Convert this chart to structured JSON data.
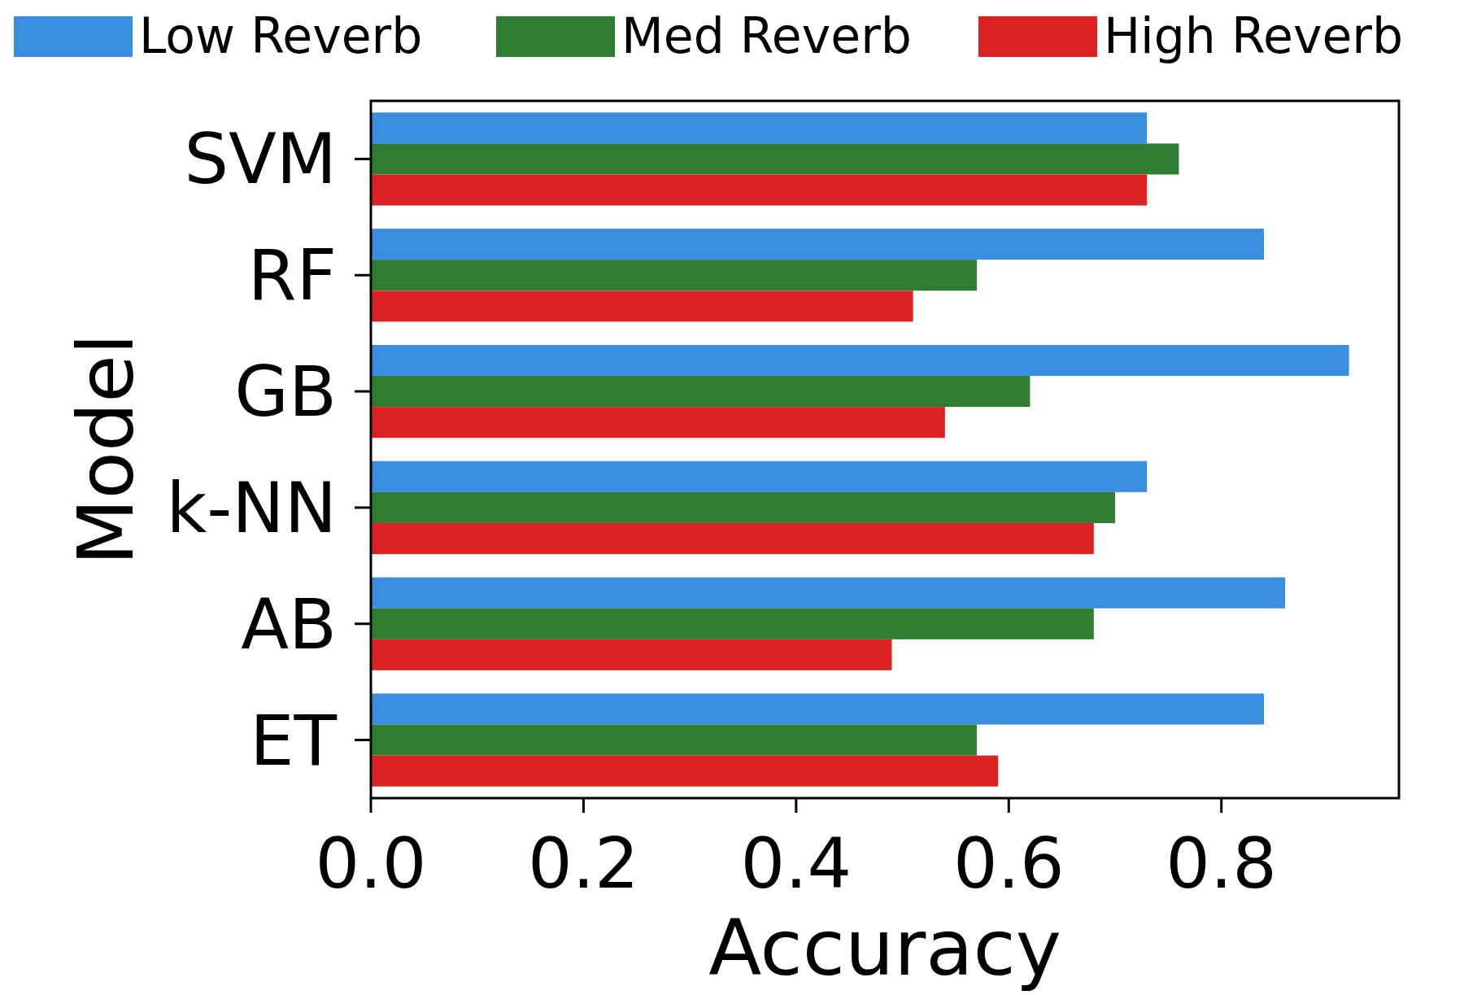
{
  "chart_data": {
    "type": "bar",
    "orientation": "horizontal",
    "xlabel": "Accuracy",
    "ylabel": "Model",
    "categories": [
      "SVM",
      "RF",
      "GB",
      "k-NN",
      "AB",
      "ET"
    ],
    "series": [
      {
        "name": "Low Reverb",
        "color": "#3a8ee0",
        "values": [
          0.73,
          0.84,
          0.92,
          0.73,
          0.86,
          0.84
        ]
      },
      {
        "name": "Med Reverb",
        "color": "#2e7d32",
        "values": [
          0.76,
          0.57,
          0.62,
          0.7,
          0.68,
          0.57
        ]
      },
      {
        "name": "High Reverb",
        "color": "#dd2222",
        "values": [
          0.73,
          0.51,
          0.54,
          0.68,
          0.49,
          0.59
        ]
      }
    ],
    "xlim": [
      0,
      0.967
    ],
    "xticks": [
      {
        "value": 0,
        "label": "0.0"
      },
      {
        "value": 0.2,
        "label": "0.2"
      },
      {
        "value": 0.4,
        "label": "0.4"
      },
      {
        "value": 0.6,
        "label": "0.6"
      },
      {
        "value": 0.8,
        "label": "0.8"
      }
    ],
    "legend": "top",
    "grid": false
  }
}
